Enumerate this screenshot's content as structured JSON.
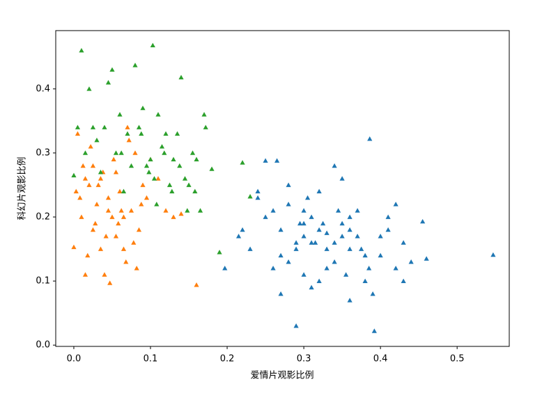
{
  "chart_data": {
    "type": "scatter",
    "marker": "triangle",
    "xlabel": "爱情片观影比例",
    "ylabel": "科幻片观影比例",
    "xlim": [
      -0.0236,
      0.568
    ],
    "ylim": [
      -0.002,
      0.491
    ],
    "xticks": [
      {
        "value": 0,
        "label": "0.0"
      },
      0.1,
      0.2,
      0.3,
      0.4,
      0.5
    ],
    "yticks": [
      {
        "value": 0,
        "label": "0.0"
      },
      0.1,
      0.2,
      0.3,
      0.4
    ],
    "series": [
      {
        "color": "#1f77b4",
        "x": [
          0.547,
          0.386,
          0.29,
          0.392,
          0.197,
          0.46,
          0.455,
          0.25,
          0.265,
          0.3,
          0.32,
          0.34,
          0.35,
          0.36,
          0.37,
          0.38,
          0.3,
          0.31,
          0.33,
          0.28,
          0.27,
          0.29,
          0.41,
          0.42,
          0.43,
          0.4,
          0.39,
          0.38,
          0.35,
          0.34,
          0.32,
          0.31,
          0.3,
          0.28,
          0.26,
          0.24,
          0.23,
          0.22,
          0.215,
          0.25,
          0.26,
          0.27,
          0.33,
          0.36,
          0.37,
          0.4,
          0.41,
          0.44,
          0.35,
          0.32,
          0.3,
          0.29,
          0.33,
          0.34,
          0.36,
          0.375,
          0.385,
          0.305,
          0.315,
          0.325,
          0.345,
          0.27,
          0.28,
          0.24,
          0.42,
          0.43,
          0.36,
          0.31,
          0.295,
          0.355
        ],
        "values": [
          0.141,
          0.322,
          0.03,
          0.022,
          0.12,
          0.135,
          0.193,
          0.288,
          0.288,
          0.21,
          0.18,
          0.16,
          0.19,
          0.15,
          0.17,
          0.14,
          0.17,
          0.2,
          0.12,
          0.22,
          0.18,
          0.15,
          0.18,
          0.12,
          0.1,
          0.17,
          0.08,
          0.1,
          0.26,
          0.28,
          0.1,
          0.09,
          0.11,
          0.13,
          0.21,
          0.23,
          0.15,
          0.18,
          0.17,
          0.2,
          0.12,
          0.08,
          0.15,
          0.07,
          0.21,
          0.14,
          0.2,
          0.13,
          0.17,
          0.24,
          0.19,
          0.16,
          0.175,
          0.13,
          0.18,
          0.15,
          0.12,
          0.23,
          0.16,
          0.19,
          0.21,
          0.14,
          0.25,
          0.24,
          0.22,
          0.16,
          0.2,
          0.16,
          0.19,
          0.11
        ]
      },
      {
        "color": "#ff7f0e",
        "x": [
          0.0,
          0.005,
          0.01,
          0.015,
          0.02,
          0.025,
          0.03,
          0.035,
          0.04,
          0.045,
          0.05,
          0.055,
          0.06,
          0.065,
          0.07,
          0.075,
          0.08,
          0.085,
          0.09,
          0.095,
          0.1,
          0.11,
          0.12,
          0.13,
          0.14,
          0.16,
          0.047,
          0.018,
          0.008,
          0.028,
          0.038,
          0.058,
          0.068,
          0.078,
          0.088,
          0.012,
          0.022,
          0.032,
          0.042,
          0.052,
          0.062,
          0.072,
          0.082,
          0.003,
          0.015,
          0.025,
          0.035,
          0.045,
          0.055,
          0.065
        ],
        "values": [
          0.153,
          0.33,
          0.2,
          0.11,
          0.25,
          0.28,
          0.22,
          0.26,
          0.11,
          0.23,
          0.2,
          0.17,
          0.24,
          0.15,
          0.34,
          0.21,
          0.3,
          0.18,
          0.25,
          0.23,
          0.29,
          0.26,
          0.21,
          0.2,
          0.205,
          0.094,
          0.097,
          0.14,
          0.23,
          0.19,
          0.27,
          0.19,
          0.13,
          0.16,
          0.22,
          0.28,
          0.31,
          0.25,
          0.17,
          0.29,
          0.21,
          0.32,
          0.12,
          0.24,
          0.26,
          0.18,
          0.15,
          0.21,
          0.27,
          0.2
        ]
      },
      {
        "color": "#2ca02c",
        "x": [
          0.01,
          0.103,
          0.19,
          0.05,
          0.08,
          0.045,
          0.14,
          0.02,
          0.03,
          0.06,
          0.07,
          0.09,
          0.1,
          0.11,
          0.12,
          0.13,
          0.15,
          0.16,
          0.17,
          0.18,
          0.005,
          0.015,
          0.025,
          0.035,
          0.055,
          0.065,
          0.075,
          0.085,
          0.095,
          0.105,
          0.115,
          0.125,
          0.135,
          0.145,
          0.155,
          0.165,
          0.04,
          0.062,
          0.088,
          0.098,
          0.108,
          0.118,
          0.128,
          0.138,
          0.148,
          0.158,
          0.172,
          0.0,
          0.22,
          0.23
        ],
        "values": [
          0.46,
          0.468,
          0.145,
          0.43,
          0.437,
          0.41,
          0.418,
          0.4,
          0.32,
          0.36,
          0.33,
          0.37,
          0.29,
          0.36,
          0.33,
          0.29,
          0.25,
          0.29,
          0.36,
          0.275,
          0.34,
          0.3,
          0.34,
          0.27,
          0.3,
          0.24,
          0.28,
          0.34,
          0.28,
          0.26,
          0.31,
          0.25,
          0.33,
          0.26,
          0.3,
          0.21,
          0.34,
          0.3,
          0.33,
          0.27,
          0.22,
          0.3,
          0.24,
          0.28,
          0.21,
          0.24,
          0.34,
          0.265,
          0.285,
          0.232
        ]
      }
    ]
  }
}
